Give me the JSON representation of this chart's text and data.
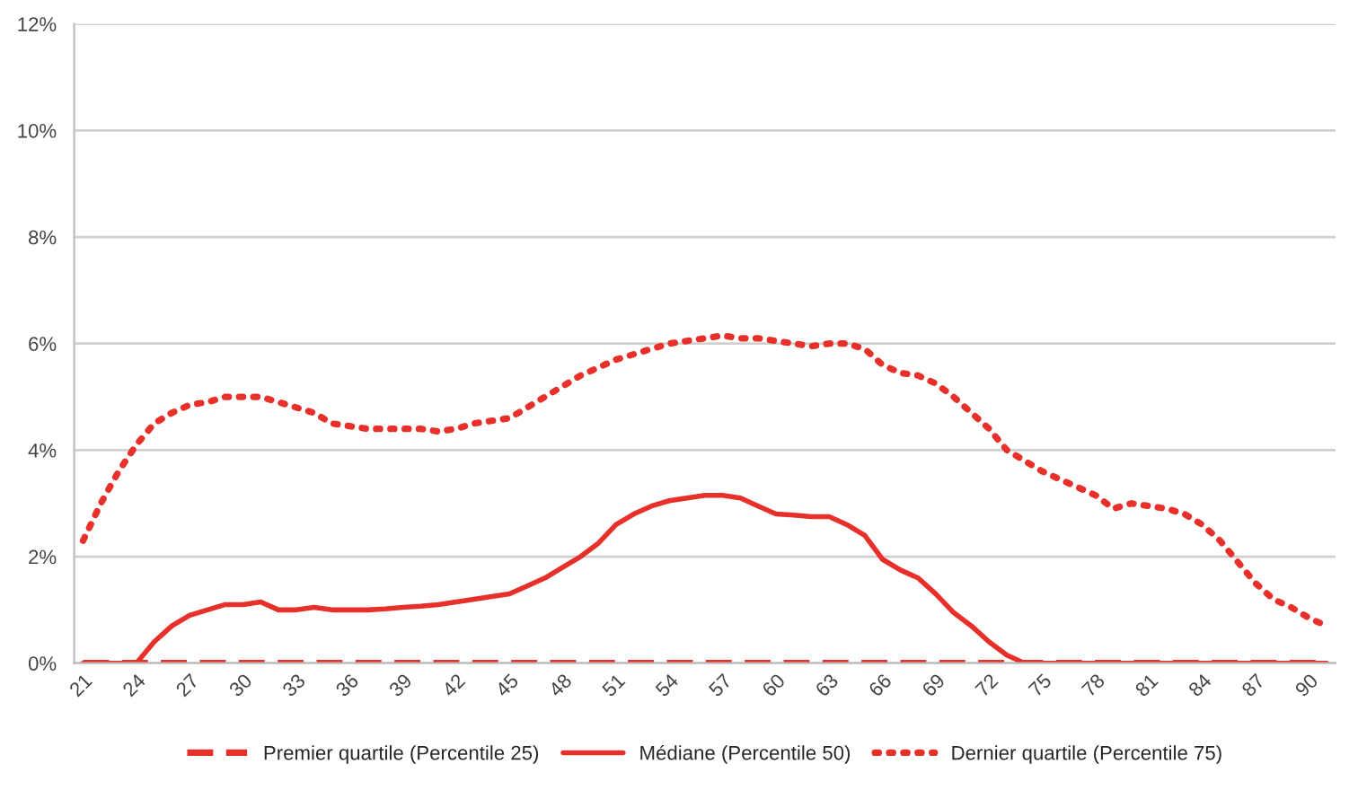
{
  "chart_data": {
    "type": "line",
    "categories": [
      "21",
      null,
      null,
      "24",
      null,
      null,
      "27",
      null,
      null,
      "30",
      null,
      null,
      "33",
      null,
      null,
      "36",
      null,
      null,
      "39",
      null,
      null,
      "42",
      null,
      null,
      "45",
      null,
      null,
      "48",
      null,
      null,
      "51",
      null,
      null,
      "54",
      null,
      null,
      "57",
      null,
      null,
      "60",
      null,
      null,
      "63",
      null,
      null,
      "66",
      null,
      null,
      "69",
      null,
      null,
      "72",
      null,
      null,
      "75",
      null,
      null,
      "78",
      null,
      null,
      "81",
      null,
      null,
      "84",
      null,
      null,
      "87",
      null,
      null,
      "90",
      null
    ],
    "series": [
      {
        "name": "Premier quartile (Percentile 25)",
        "color": "#e8302a",
        "line_style": "dashed",
        "values": [
          0,
          0,
          0,
          0,
          0,
          0,
          0,
          0,
          0,
          0,
          0,
          0,
          0,
          0,
          0,
          0,
          0,
          0,
          0,
          0,
          0,
          0,
          0,
          0,
          0,
          0,
          0,
          0,
          0,
          0,
          0,
          0,
          0,
          0,
          0,
          0,
          0,
          0,
          0,
          0,
          0,
          0,
          0,
          0,
          0,
          0,
          0,
          0,
          0,
          0,
          0,
          0,
          0,
          0,
          0,
          0,
          0,
          0,
          0,
          0,
          0,
          0,
          0,
          0,
          0,
          0,
          0,
          0,
          0,
          0,
          0
        ]
      },
      {
        "name": "Médiane (Percentile 50)",
        "color": "#e8302a",
        "line_style": "solid",
        "values": [
          0,
          0,
          0,
          0,
          0.4,
          0.7,
          0.9,
          1.0,
          1.1,
          1.1,
          1.15,
          1.0,
          1.0,
          1.05,
          1.0,
          1.0,
          1.0,
          1.02,
          1.05,
          1.07,
          1.1,
          1.15,
          1.2,
          1.25,
          1.3,
          1.45,
          1.6,
          1.8,
          2.0,
          2.25,
          2.6,
          2.8,
          2.95,
          3.05,
          3.1,
          3.15,
          3.15,
          3.1,
          2.95,
          2.8,
          2.78,
          2.75,
          2.75,
          2.6,
          2.4,
          1.95,
          1.75,
          1.6,
          1.3,
          0.95,
          0.7,
          0.4,
          0.15,
          0,
          0,
          0,
          0,
          0,
          0,
          0,
          0,
          0,
          0,
          0,
          0,
          0,
          0,
          0,
          0,
          0,
          0
        ]
      },
      {
        "name": "Dernier quartile (Percentile 75)",
        "color": "#e8302a",
        "line_style": "dotted",
        "values": [
          2.3,
          3.0,
          3.6,
          4.1,
          4.5,
          4.7,
          4.85,
          4.9,
          5.0,
          5.0,
          5.0,
          4.9,
          4.8,
          4.7,
          4.5,
          4.45,
          4.4,
          4.4,
          4.4,
          4.4,
          4.35,
          4.4,
          4.5,
          4.55,
          4.6,
          4.8,
          5.0,
          5.2,
          5.4,
          5.55,
          5.7,
          5.8,
          5.9,
          6.0,
          6.05,
          6.1,
          6.15,
          6.1,
          6.1,
          6.05,
          6.0,
          5.95,
          6.0,
          6.0,
          5.9,
          5.6,
          5.45,
          5.4,
          5.25,
          5.0,
          4.7,
          4.4,
          4.0,
          3.8,
          3.6,
          3.45,
          3.3,
          3.15,
          2.9,
          3.0,
          2.95,
          2.9,
          2.8,
          2.6,
          2.3,
          1.9,
          1.5,
          1.2,
          1.05,
          0.85,
          0.7
        ]
      }
    ],
    "ylim": [
      0,
      12
    ],
    "yticks": [
      {
        "value": 0,
        "label": "0%"
      },
      {
        "value": 2,
        "label": "2%"
      },
      {
        "value": 4,
        "label": "4%"
      },
      {
        "value": 6,
        "label": "6%"
      },
      {
        "value": 8,
        "label": "8%"
      },
      {
        "value": 10,
        "label": "10%"
      },
      {
        "value": 12,
        "label": "12%"
      }
    ],
    "grid": "y",
    "legend": "bottom",
    "marker": "none"
  }
}
